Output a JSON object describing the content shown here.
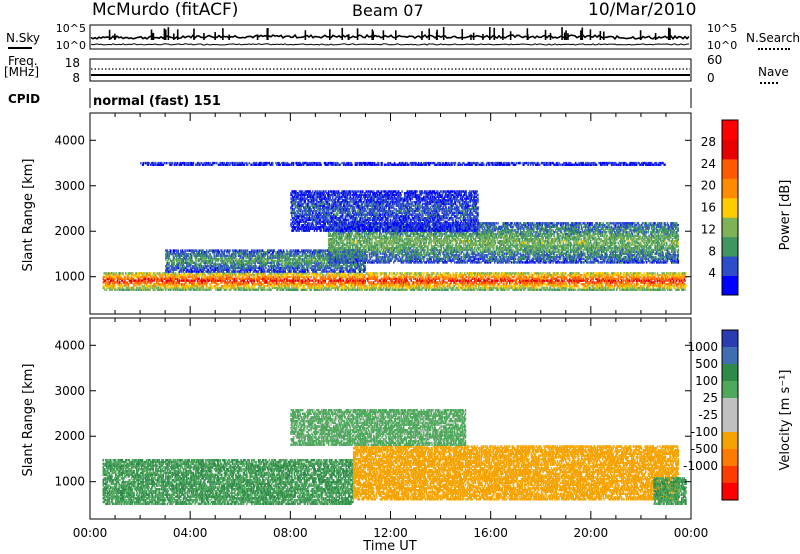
{
  "header": {
    "station": "McMurdo (fitACF)",
    "beam": "Beam 07",
    "date": "10/Mar/2010"
  },
  "summary": {
    "left_sky": "N.Sky",
    "right_search": "N.Search",
    "freq_label": "Freq.",
    "freq_unit": "[MHz]",
    "nave": "Nave",
    "cpid_label": "CPID",
    "cpid_value": "normal (fast) 151",
    "left_top_ticks": [
      "10^5",
      "10^0"
    ],
    "right_top_ticks": [
      "10^5",
      "10^0"
    ],
    "left_freq_ticks": [
      "18",
      "8"
    ],
    "right_nave_ticks": [
      "60",
      "0"
    ]
  },
  "colors": {
    "power": [
      "#0000ff",
      "#2d4dc9",
      "#3f9660",
      "#7db356",
      "#ffcc00",
      "#ff8c00",
      "#ff5a00",
      "#e60000",
      "#ff0000"
    ],
    "velocity": [
      "#2a3db0",
      "#3f6fb0",
      "#2f8a4a",
      "#4fa85c",
      "#c0c0c0",
      "#c0c0c0",
      "#f5a300",
      "#ff7a00",
      "#ff3c00",
      "#ff0000"
    ]
  },
  "chart_data": [
    {
      "type": "heatmap",
      "title": "",
      "xlabel": "Time UT",
      "ylabel": "Slant Range [km]",
      "x_ticks": [
        "00:00",
        "04:00",
        "08:00",
        "12:00",
        "16:00",
        "20:00",
        "00:00"
      ],
      "xlim_hours": [
        0,
        24
      ],
      "ylim": [
        180,
        4600
      ],
      "y_ticks": [
        1000,
        2000,
        3000,
        4000
      ],
      "colorbar": {
        "label": "Power [dB]",
        "range": [
          0,
          32
        ],
        "ticks": [
          4,
          8,
          12,
          16,
          20,
          24,
          28
        ]
      },
      "bands": [
        {
          "x": [
            0.5,
            23.8
          ],
          "y": [
            700,
            1100
          ],
          "value": 26
        },
        {
          "x": [
            3,
            11
          ],
          "y": [
            1100,
            1600
          ],
          "value": 10
        },
        {
          "x": [
            9.5,
            23.5
          ],
          "y": [
            1300,
            2200
          ],
          "value": 12
        },
        {
          "x": [
            8,
            15.5
          ],
          "y": [
            2000,
            2900
          ],
          "value": 6
        },
        {
          "x": [
            2,
            23
          ],
          "y": [
            3450,
            3520
          ],
          "value": 4
        }
      ]
    },
    {
      "type": "heatmap",
      "title": "",
      "xlabel": "Time UT",
      "ylabel": "Slant Range [km]",
      "x_ticks": [
        "00:00",
        "04:00",
        "08:00",
        "12:00",
        "16:00",
        "20:00",
        "00:00"
      ],
      "xlim_hours": [
        0,
        24
      ],
      "ylim": [
        180,
        4600
      ],
      "y_ticks": [
        1000,
        2000,
        3000,
        4000
      ],
      "colorbar": {
        "label": "Velocity [m s⁻¹]",
        "ticks": [
          1000,
          500,
          100,
          25,
          -25,
          -100,
          -500,
          -1000
        ]
      },
      "bands": [
        {
          "x": [
            0.5,
            10.5
          ],
          "y": [
            500,
            1500
          ],
          "value": 100
        },
        {
          "x": [
            10.5,
            23.5
          ],
          "y": [
            600,
            1800
          ],
          "value": -300
        },
        {
          "x": [
            22.5,
            23.8
          ],
          "y": [
            500,
            1100
          ],
          "value": 100
        },
        {
          "x": [
            8,
            15
          ],
          "y": [
            1800,
            2600
          ],
          "value": 50
        }
      ]
    }
  ]
}
